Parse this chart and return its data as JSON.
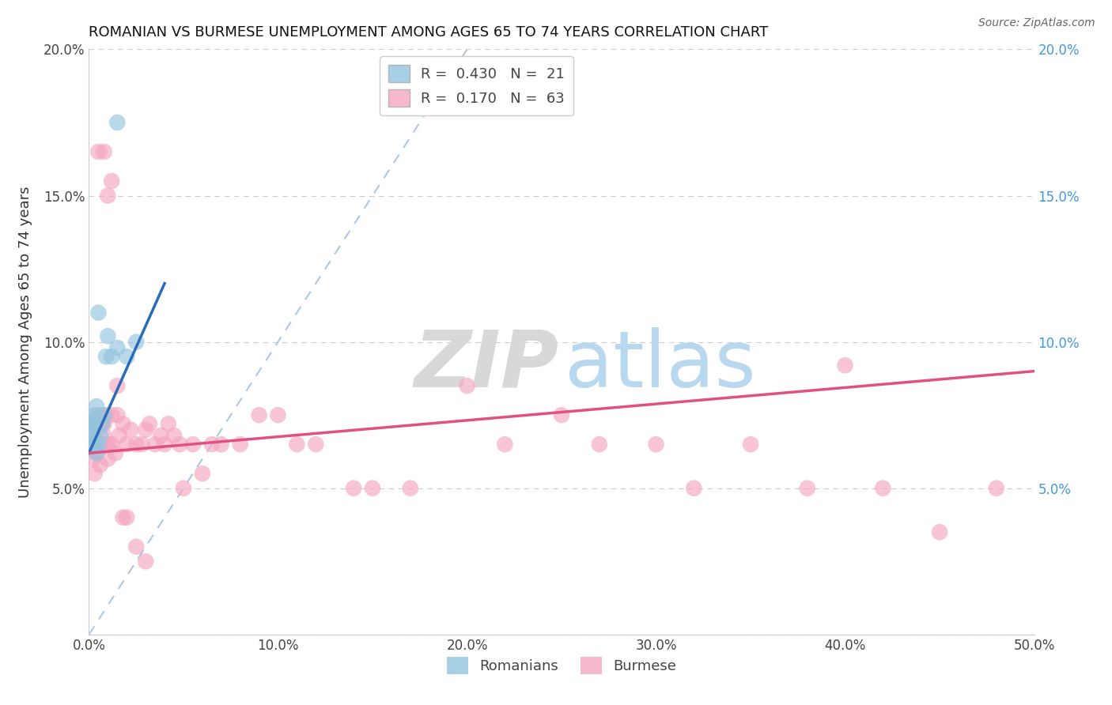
{
  "title": "ROMANIAN VS BURMESE UNEMPLOYMENT AMONG AGES 65 TO 74 YEARS CORRELATION CHART",
  "source": "Source: ZipAtlas.com",
  "ylabel": "Unemployment Among Ages 65 to 74 years",
  "xlabel": "",
  "xlim": [
    0,
    0.5
  ],
  "ylim": [
    0,
    0.2
  ],
  "xticks": [
    0.0,
    0.1,
    0.2,
    0.3,
    0.4,
    0.5
  ],
  "xticklabels": [
    "0.0%",
    "10.0%",
    "20.0%",
    "30.0%",
    "40.0%",
    "50.0%"
  ],
  "yticks": [
    0.0,
    0.05,
    0.1,
    0.15,
    0.2
  ],
  "yticklabels_left": [
    "",
    "5.0%",
    "10.0%",
    "15.0%",
    "20.0%"
  ],
  "yticklabels_right": [
    "",
    "5.0%",
    "10.0%",
    "15.0%",
    "20.0%"
  ],
  "romanian_R": 0.43,
  "romanian_N": 21,
  "burmese_R": 0.17,
  "burmese_N": 63,
  "romanian_color": "#92c5de",
  "burmese_color": "#f4a6c0",
  "romanian_line_color": "#2b6cb8",
  "burmese_line_color": "#e05080",
  "diag_line_color": "#aac8e8",
  "romanians_x": [
    0.001,
    0.001,
    0.001,
    0.002,
    0.002,
    0.003,
    0.003,
    0.004,
    0.004,
    0.005,
    0.005,
    0.006,
    0.007,
    0.008,
    0.009,
    0.01,
    0.012,
    0.015,
    0.02,
    0.025,
    0.015
  ],
  "romanians_y": [
    0.065,
    0.07,
    0.073,
    0.068,
    0.072,
    0.065,
    0.075,
    0.062,
    0.078,
    0.065,
    0.11,
    0.068,
    0.072,
    0.075,
    0.095,
    0.102,
    0.095,
    0.098,
    0.095,
    0.1,
    0.175
  ],
  "burmese_x": [
    0.001,
    0.001,
    0.002,
    0.002,
    0.003,
    0.003,
    0.004,
    0.004,
    0.005,
    0.005,
    0.006,
    0.006,
    0.007,
    0.007,
    0.008,
    0.008,
    0.009,
    0.009,
    0.01,
    0.01,
    0.012,
    0.012,
    0.014,
    0.015,
    0.016,
    0.018,
    0.02,
    0.022,
    0.025,
    0.028,
    0.03,
    0.032,
    0.035,
    0.038,
    0.04,
    0.042,
    0.045,
    0.048,
    0.05,
    0.055,
    0.06,
    0.065,
    0.07,
    0.08,
    0.09,
    0.1,
    0.11,
    0.12,
    0.14,
    0.15,
    0.17,
    0.2,
    0.22,
    0.25,
    0.27,
    0.3,
    0.32,
    0.35,
    0.38,
    0.4,
    0.42,
    0.45,
    0.48
  ],
  "burmese_y": [
    0.065,
    0.07,
    0.06,
    0.068,
    0.055,
    0.072,
    0.07,
    0.062,
    0.063,
    0.075,
    0.058,
    0.065,
    0.072,
    0.065,
    0.068,
    0.072,
    0.065,
    0.075,
    0.06,
    0.065,
    0.065,
    0.075,
    0.062,
    0.075,
    0.068,
    0.072,
    0.065,
    0.07,
    0.065,
    0.065,
    0.07,
    0.072,
    0.065,
    0.068,
    0.065,
    0.072,
    0.068,
    0.065,
    0.05,
    0.065,
    0.055,
    0.065,
    0.065,
    0.065,
    0.075,
    0.075,
    0.065,
    0.065,
    0.05,
    0.05,
    0.05,
    0.085,
    0.065,
    0.075,
    0.065,
    0.065,
    0.05,
    0.065,
    0.05,
    0.092,
    0.05,
    0.035,
    0.05
  ],
  "burmese_extra_x": [
    0.005,
    0.008,
    0.01,
    0.012,
    0.015,
    0.018,
    0.02,
    0.025,
    0.03
  ],
  "burmese_extra_y": [
    0.165,
    0.165,
    0.15,
    0.155,
    0.085,
    0.04,
    0.04,
    0.03,
    0.025
  ]
}
